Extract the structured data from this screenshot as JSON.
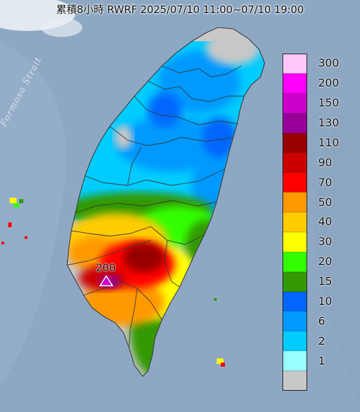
{
  "title": "累積8小時 RWRF 2025/07/10 11:00~07/10 19:00",
  "strait_label": "Formosa Strait",
  "max_label": "200",
  "max_marker": "triangle-marker",
  "colors": {
    "sea": "#8ea8c4",
    "land_no_rain": "#c8c8c8",
    "county_border": "#3a3a3a"
  },
  "legend": [
    {
      "label": "300",
      "color": "#ffc8f8"
    },
    {
      "label": "200",
      "color": "#ff00ff"
    },
    {
      "label": "150",
      "color": "#cc00cc"
    },
    {
      "label": "130",
      "color": "#990099"
    },
    {
      "label": "110",
      "color": "#990000"
    },
    {
      "label": "90",
      "color": "#cc0000"
    },
    {
      "label": "70",
      "color": "#ff0000"
    },
    {
      "label": "50",
      "color": "#ff9900"
    },
    {
      "label": "40",
      "color": "#ffcc00"
    },
    {
      "label": "30",
      "color": "#ffff00"
    },
    {
      "label": "20",
      "color": "#33ff00"
    },
    {
      "label": "15",
      "color": "#339900"
    },
    {
      "label": "10",
      "color": "#0066ff"
    },
    {
      "label": "6",
      "color": "#0099ff"
    },
    {
      "label": "2",
      "color": "#00ccff"
    },
    {
      "label": "1",
      "color": "#99ffff"
    },
    {
      "label": "",
      "color": "#c8c8c8"
    }
  ]
}
